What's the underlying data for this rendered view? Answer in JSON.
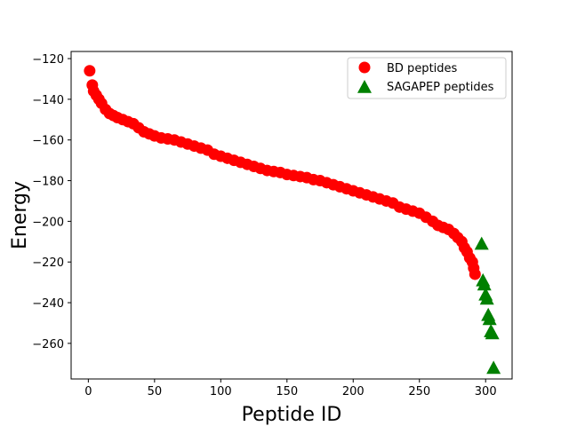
{
  "chart_data": {
    "type": "scatter",
    "xlabel": "Peptide ID",
    "ylabel": "Energy",
    "xlim": [
      -13,
      320
    ],
    "ylim": [
      -277.5,
      -116.5
    ],
    "xticks": [
      0,
      50,
      100,
      150,
      200,
      250,
      300
    ],
    "yticks": [
      -120,
      -140,
      -160,
      -180,
      -200,
      -220,
      -240,
      -260
    ],
    "ytick_labels": [
      "−120",
      "−140",
      "−160",
      "−180",
      "−200",
      "−220",
      "−240",
      "−260"
    ],
    "grid": false,
    "legend_position": "upper right",
    "series": [
      {
        "name": "BD peptides",
        "marker": "circle",
        "color": "#ff0000",
        "x": [
          1,
          3,
          4,
          6,
          8,
          10,
          13,
          16,
          19,
          22,
          26,
          30,
          34,
          38,
          42,
          46,
          50,
          55,
          60,
          65,
          70,
          75,
          80,
          85,
          90,
          95,
          100,
          105,
          110,
          115,
          120,
          125,
          130,
          135,
          140,
          145,
          150,
          155,
          160,
          165,
          170,
          175,
          180,
          185,
          190,
          195,
          200,
          205,
          210,
          215,
          220,
          225,
          230,
          235,
          240,
          245,
          250,
          255,
          260,
          264,
          268,
          272,
          276,
          279,
          282,
          284,
          286,
          288,
          290,
          291,
          292
        ],
        "y": [
          -126,
          -133,
          -136,
          -138,
          -140,
          -142,
          -145,
          -147,
          -148,
          -149,
          -150,
          -151,
          -152,
          -154,
          -156,
          -157,
          -158,
          -159,
          -159.5,
          -160,
          -161,
          -162,
          -163,
          -164,
          -165,
          -167,
          -168,
          -169,
          -170,
          -171,
          -172,
          -173,
          -174,
          -175,
          -175.5,
          -176,
          -177,
          -177.5,
          -178,
          -178.5,
          -179.5,
          -180,
          -181,
          -182,
          -183,
          -184,
          -185,
          -186,
          -187,
          -188,
          -189,
          -190,
          -191,
          -193,
          -194,
          -195,
          -196,
          -198,
          -200,
          -202,
          -203,
          -204,
          -206,
          -208,
          -210,
          -213,
          -215,
          -218,
          -220,
          -223,
          -226
        ]
      },
      {
        "name": "SAGAPEP peptides",
        "marker": "triangle",
        "color": "#008000",
        "x": [
          297,
          298,
          299,
          300,
          301,
          302,
          303,
          304,
          305,
          306
        ],
        "y": [
          -211,
          -229,
          -231,
          -236,
          -238,
          -246,
          -248,
          -254,
          -255,
          -272
        ]
      }
    ]
  }
}
